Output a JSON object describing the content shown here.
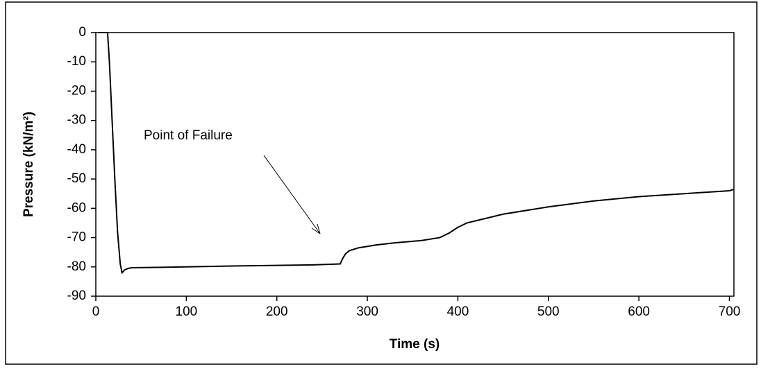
{
  "chart_data": {
    "type": "line",
    "xlabel": "Time (s)",
    "ylabel": "Pressure (kN/m²)",
    "annotation": "Point of Failure",
    "x": [
      3,
      8,
      13,
      15,
      18,
      21,
      24,
      27,
      29,
      32,
      36,
      40,
      60,
      100,
      150,
      200,
      240,
      270,
      273,
      276,
      280,
      290,
      310,
      330,
      360,
      380,
      390,
      400,
      410,
      430,
      450,
      500,
      550,
      600,
      650,
      700,
      705
    ],
    "series": [
      {
        "name": "Pressure",
        "color": "#000000",
        "values": [
          0,
          0,
          0,
          -10,
          -30,
          -50,
          -68,
          -79,
          -82,
          -81,
          -80.5,
          -80.3,
          -80.2,
          -80,
          -79.7,
          -79.5,
          -79.3,
          -79,
          -77,
          -75.5,
          -74.5,
          -73.5,
          -72.5,
          -71.8,
          -71,
          -70,
          -68.5,
          -66.5,
          -65,
          -63.5,
          -62,
          -59.5,
          -57.5,
          -56,
          -55,
          -54,
          -53.5
        ]
      }
    ],
    "xlim": [
      0,
      705
    ],
    "xticks": [
      0,
      100,
      200,
      300,
      400,
      500,
      600,
      700
    ],
    "ylim": [
      -90,
      0
    ],
    "yticks": [
      0,
      -10,
      -20,
      -30,
      -40,
      -50,
      -60,
      -70,
      -80,
      -90
    ],
    "grid": false
  }
}
